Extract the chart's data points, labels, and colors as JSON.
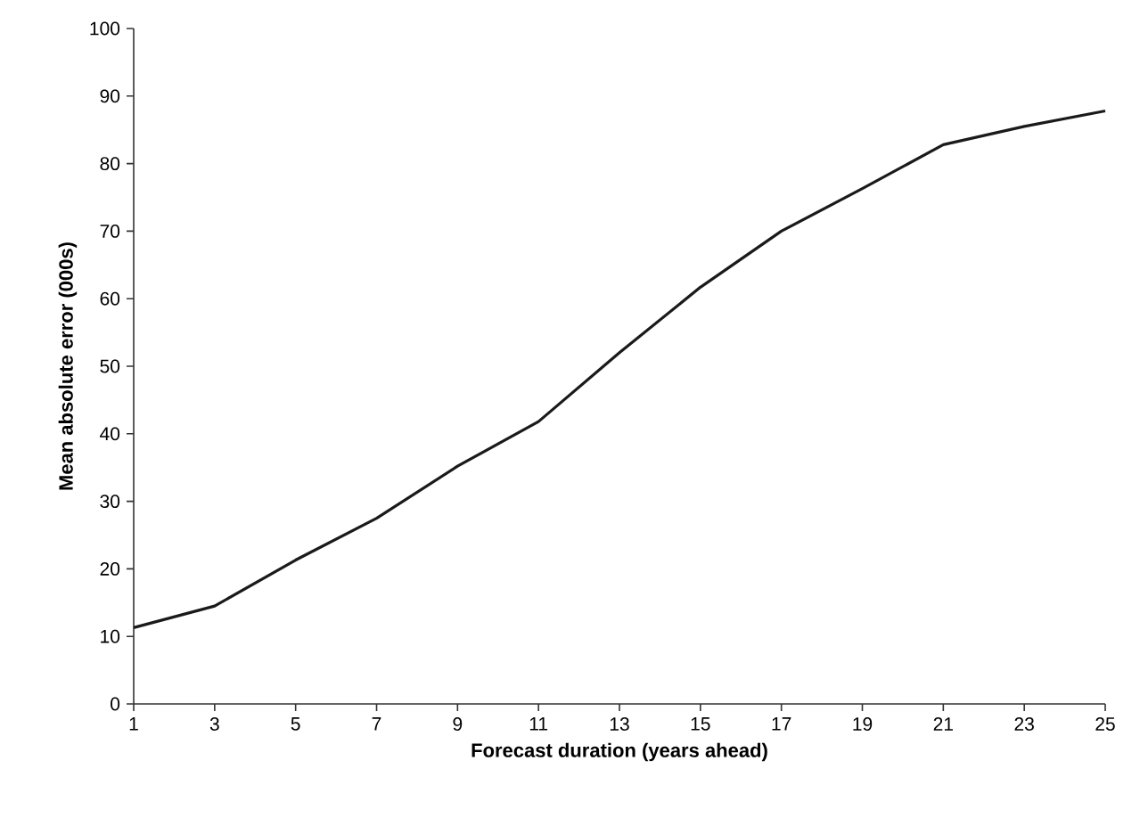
{
  "chart_data": {
    "type": "line",
    "xlabel": "Forecast duration (years ahead)",
    "ylabel": "Mean absolute error (000s)",
    "x": [
      1,
      3,
      5,
      7,
      9,
      11,
      13,
      15,
      17,
      19,
      21,
      23,
      25
    ],
    "series": [
      {
        "color": "#1a1a1a",
        "values": [
          11.3,
          14.5,
          21.3,
          27.5,
          35.2,
          41.8,
          52,
          61.7,
          70,
          76.3,
          82.8,
          85.5,
          87.8
        ]
      }
    ],
    "xlim": [
      1,
      25
    ],
    "xticks": [
      1,
      3,
      5,
      7,
      9,
      11,
      13,
      15,
      17,
      19,
      21,
      23,
      25
    ],
    "ylim": [
      0,
      100
    ],
    "yticks": [
      0,
      10,
      20,
      30,
      40,
      50,
      60,
      70,
      80,
      90,
      100
    ],
    "marker": "none",
    "line_style": "solid"
  }
}
